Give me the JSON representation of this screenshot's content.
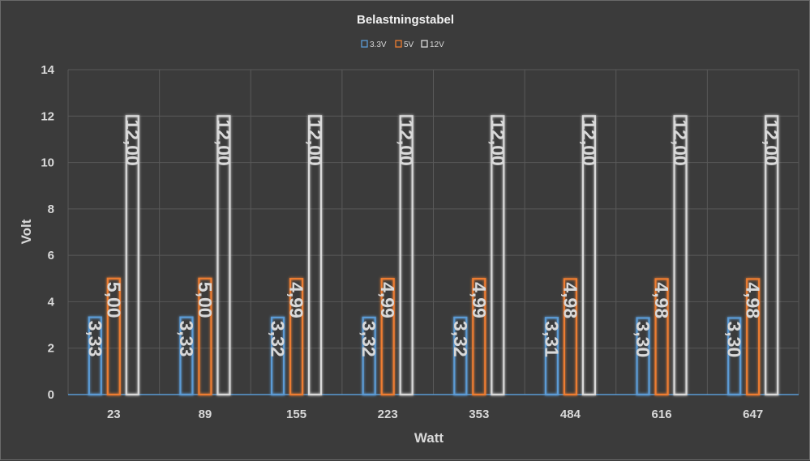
{
  "chart_data": {
    "type": "bar",
    "title": "Belastningstabel",
    "xlabel": "Watt",
    "ylabel": "Volt",
    "categories": [
      "23",
      "89",
      "155",
      "223",
      "353",
      "484",
      "616",
      "647"
    ],
    "ylim": [
      0,
      14
    ],
    "yticks": [
      "0",
      "2",
      "4",
      "6",
      "8",
      "10",
      "12",
      "14"
    ],
    "grid": true,
    "legend_position": "top-center",
    "series": [
      {
        "name": "3.3V",
        "color": "#5b9bd5",
        "values": [
          3.33,
          3.33,
          3.32,
          3.32,
          3.32,
          3.31,
          3.3,
          3.3
        ],
        "labels": [
          "3,33",
          "3,33",
          "3,32",
          "3,32",
          "3,32",
          "3,31",
          "3,30",
          "3,30"
        ]
      },
      {
        "name": "5V",
        "color": "#ed7d31",
        "values": [
          5.0,
          5.0,
          4.99,
          4.99,
          4.99,
          4.98,
          4.98,
          4.98
        ],
        "labels": [
          "5,00",
          "5,00",
          "4,99",
          "4,99",
          "4,99",
          "4,98",
          "4,98",
          "4,98"
        ]
      },
      {
        "name": "12V",
        "color": "#d9d9d9",
        "values": [
          12.0,
          12.0,
          12.0,
          12.0,
          12.0,
          12.0,
          12.0,
          12.0
        ],
        "labels": [
          "12,00",
          "12,00",
          "12,00",
          "12,00",
          "12,00",
          "12,00",
          "12,00",
          "12,00"
        ]
      }
    ]
  }
}
